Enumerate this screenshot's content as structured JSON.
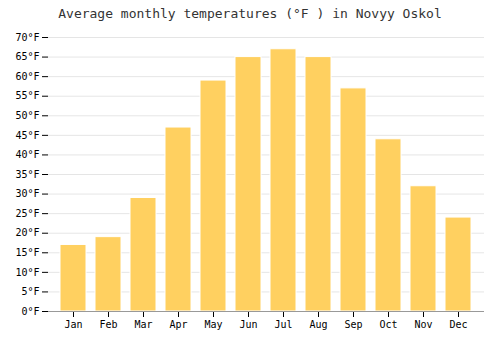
{
  "chart_data": {
    "type": "bar",
    "title": "Average monthly temperatures (°F ) in Novyy Oskol",
    "categories": [
      "Jan",
      "Feb",
      "Mar",
      "Apr",
      "May",
      "Jun",
      "Jul",
      "Aug",
      "Sep",
      "Oct",
      "Nov",
      "Dec"
    ],
    "values": [
      17,
      19,
      29,
      47,
      59,
      65,
      67,
      65,
      57,
      44,
      32,
      24
    ],
    "color": "#FFD060",
    "ylim": [
      0,
      70
    ],
    "yticks": [
      {
        "value": 0,
        "label": "0°F"
      },
      {
        "value": 5,
        "label": "5°F"
      },
      {
        "value": 10,
        "label": "10°F"
      },
      {
        "value": 15,
        "label": "15°F"
      },
      {
        "value": 20,
        "label": "20°F"
      },
      {
        "value": 25,
        "label": "25°F"
      },
      {
        "value": 30,
        "label": "30°F"
      },
      {
        "value": 35,
        "label": "35°F"
      },
      {
        "value": 40,
        "label": "40°F"
      },
      {
        "value": 45,
        "label": "45°F"
      },
      {
        "value": 50,
        "label": "50°F"
      },
      {
        "value": 55,
        "label": "55°F"
      },
      {
        "value": 60,
        "label": "60°F"
      },
      {
        "value": 65,
        "label": "65°F"
      },
      {
        "value": 70,
        "label": "70°F"
      }
    ],
    "grid": true
  }
}
